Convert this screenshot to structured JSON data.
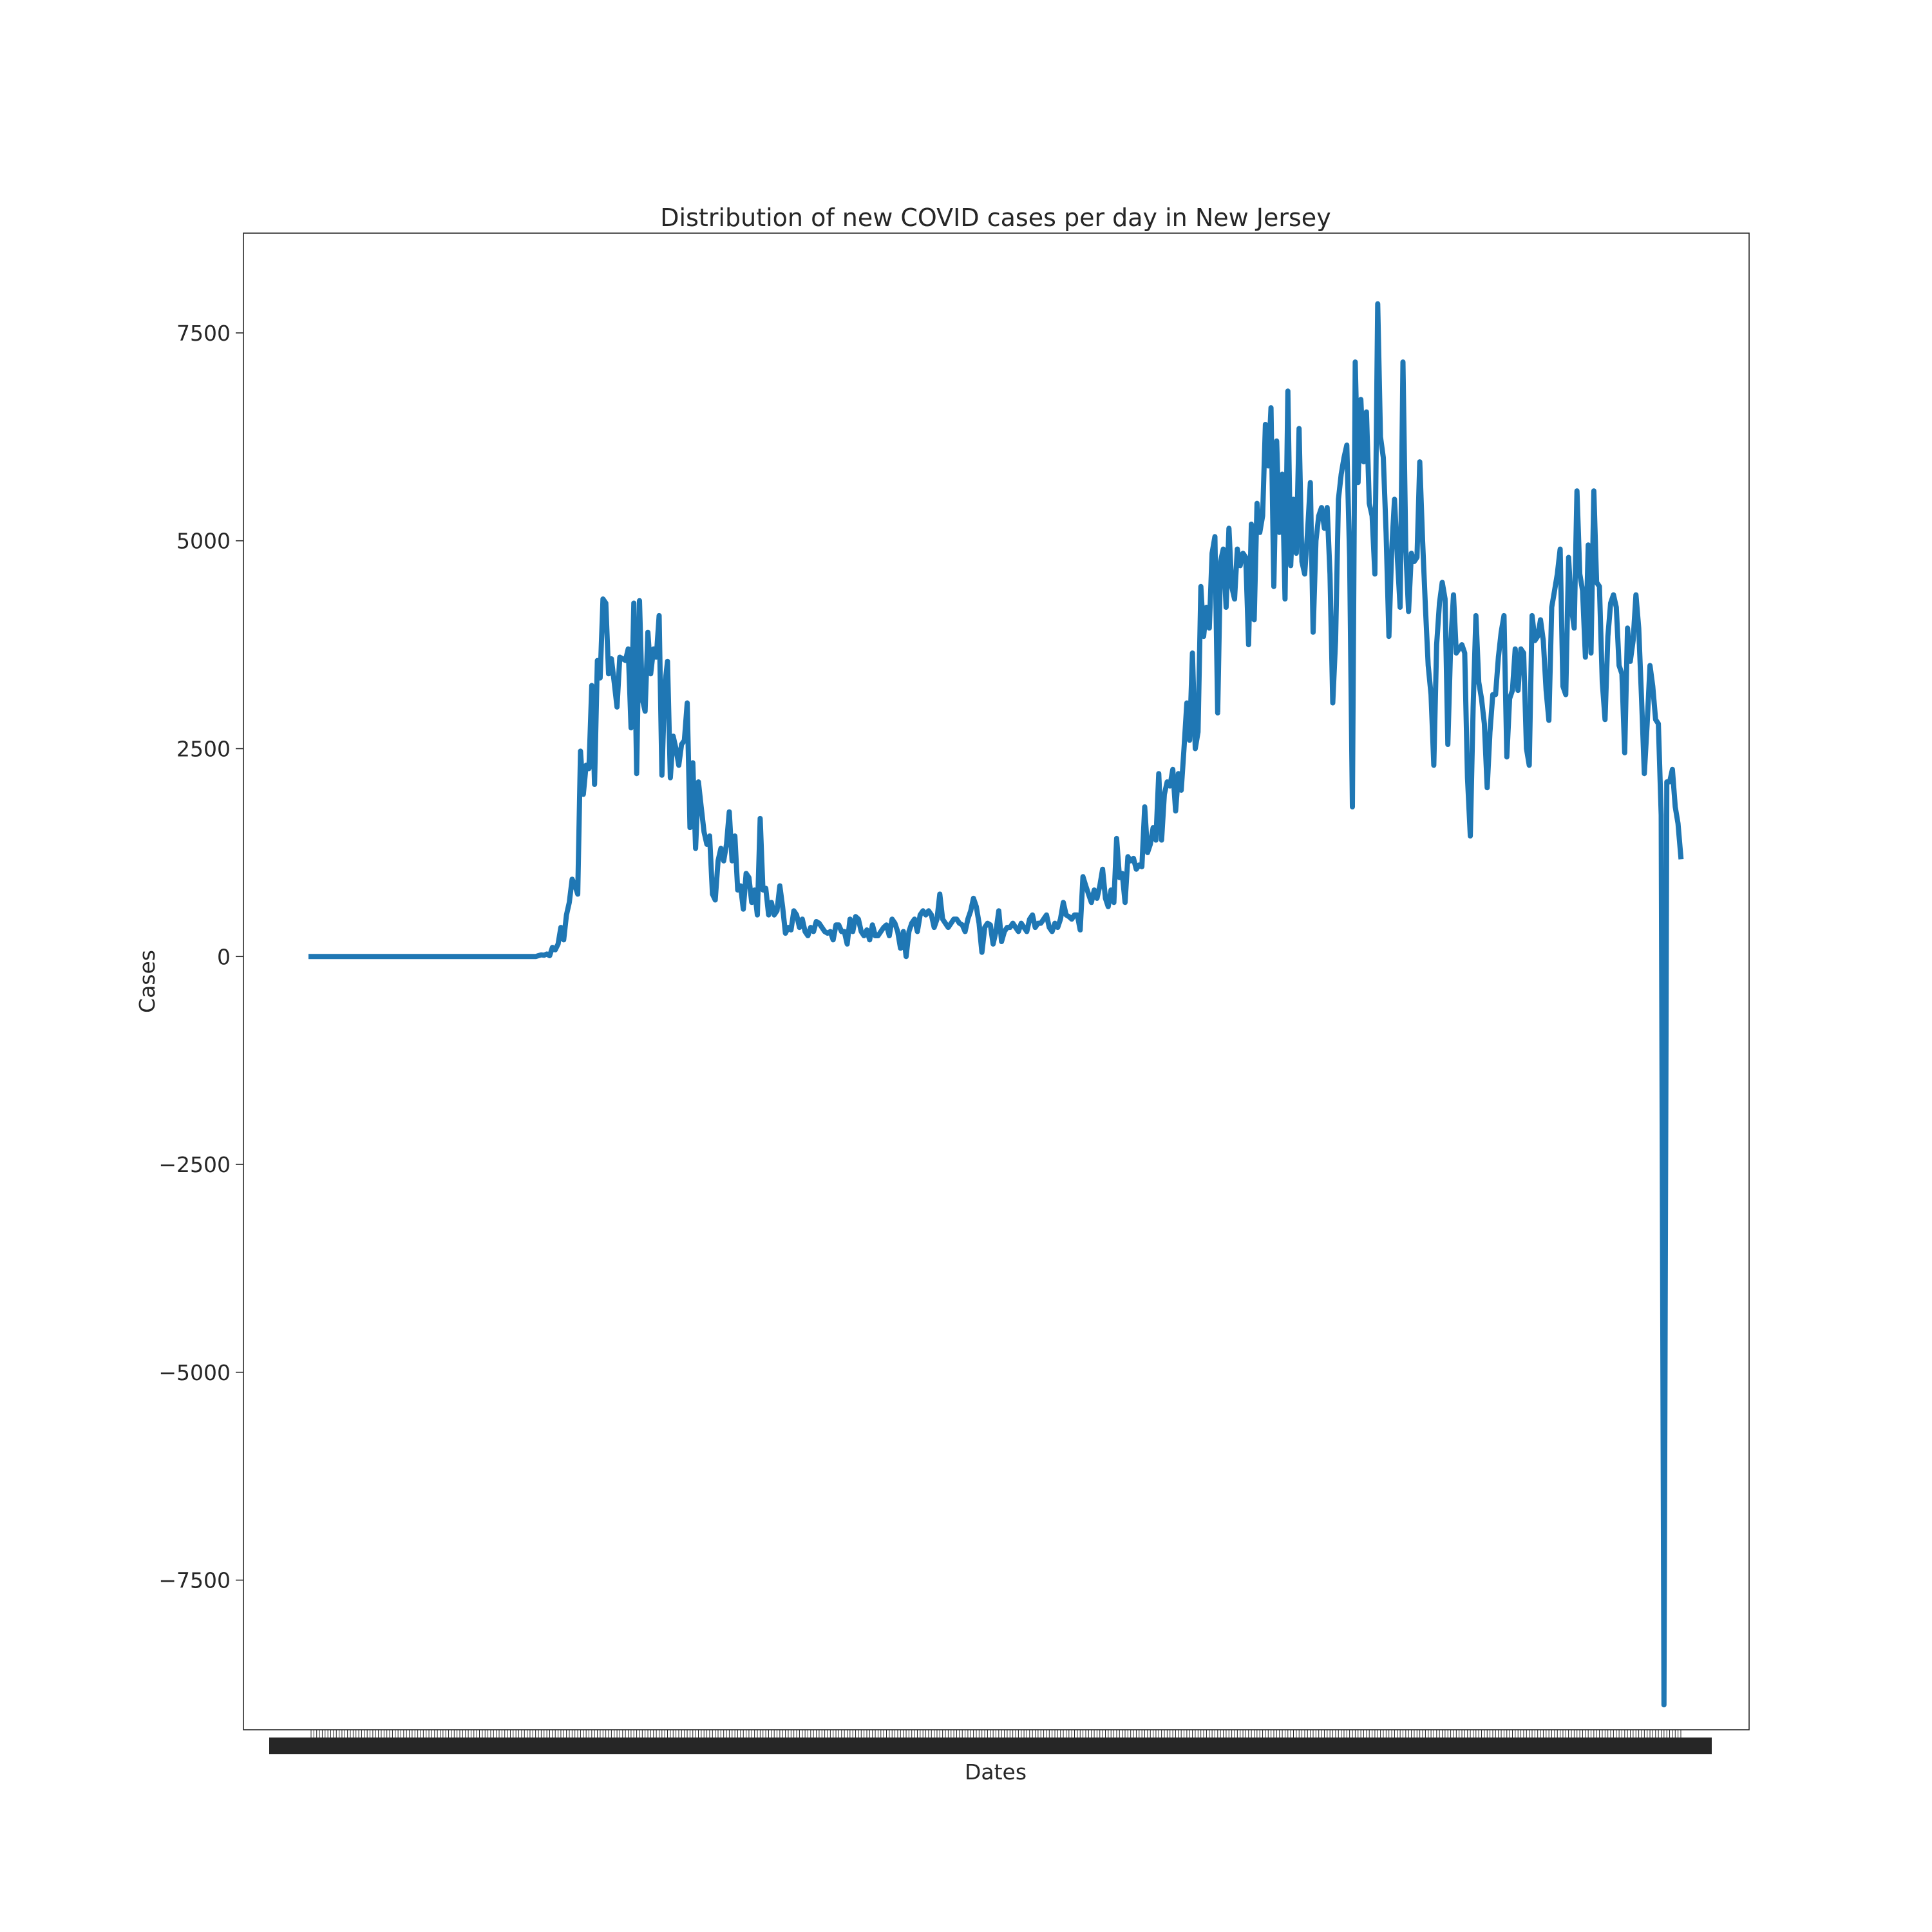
{
  "chart_data": {
    "type": "line",
    "title": "Distribution of new COVID cases per day in New Jersey",
    "xlabel": "Dates",
    "ylabel": "Cases",
    "ylim": [
      -9300,
      8700
    ],
    "yticks": [
      -7500,
      -5000,
      -2500,
      0,
      2500,
      5000,
      7500
    ],
    "ytick_labels": [
      "−7500",
      "−5000",
      "−2500",
      "0",
      "2500",
      "5000",
      "7500"
    ],
    "x_tick_labels_legible": false,
    "grid": false,
    "colors": {
      "line": "#1f77b4",
      "axes": "#262626",
      "background": "#ffffff"
    },
    "series": [
      {
        "values": [
          0,
          0,
          0,
          0,
          0,
          0,
          0,
          0,
          0,
          0,
          0,
          0,
          0,
          0,
          0,
          0,
          0,
          0,
          0,
          0,
          0,
          0,
          0,
          0,
          0,
          0,
          0,
          0,
          0,
          0,
          0,
          0,
          0,
          0,
          0,
          0,
          0,
          0,
          0,
          0,
          0,
          0,
          0,
          0,
          0,
          0,
          0,
          0,
          0,
          0,
          0,
          0,
          0,
          0,
          0,
          0,
          0,
          0,
          0,
          0,
          0,
          0,
          0,
          0,
          0,
          0,
          0,
          0,
          0,
          0,
          0,
          0,
          0,
          0,
          0,
          0,
          0,
          0,
          0,
          0,
          0,
          10,
          20,
          15,
          30,
          10,
          110,
          80,
          150,
          350,
          200,
          500,
          650,
          930,
          860,
          750,
          2470,
          1950,
          2300,
          2260,
          3260,
          2070,
          3560,
          3350,
          4300,
          4250,
          3400,
          3580,
          3300,
          3000,
          3600,
          3580,
          3560,
          3700,
          2750,
          4250,
          2200,
          4280,
          3100,
          2950,
          3900,
          3400,
          3700,
          3600,
          4100,
          2180,
          3250,
          3550,
          2150,
          2650,
          2500,
          2300,
          2550,
          2600,
          3050,
          1550,
          2330,
          1300,
          2100,
          1800,
          1500,
          1350,
          1450,
          750,
          680,
          1150,
          1300,
          1150,
          1350,
          1740,
          1150,
          1450,
          800,
          850,
          570,
          1000,
          950,
          650,
          800,
          500,
          1660,
          800,
          820,
          500,
          650,
          500,
          550,
          850,
          600,
          280,
          350,
          320,
          550,
          500,
          350,
          450,
          300,
          250,
          350,
          300,
          420,
          400,
          350,
          300,
          280,
          300,
          200,
          380,
          380,
          300,
          300,
          150,
          450,
          300,
          480,
          450,
          300,
          250,
          320,
          200,
          380,
          250,
          250,
          300,
          350,
          380,
          250,
          450,
          400,
          300,
          100,
          300,
          0,
          300,
          400,
          450,
          300,
          500,
          550,
          500,
          550,
          500,
          350,
          450,
          750,
          450,
          400,
          350,
          400,
          450,
          450,
          400,
          380,
          300,
          450,
          550,
          700,
          600,
          400,
          50,
          350,
          400,
          380,
          150,
          300,
          550,
          180,
          300,
          350,
          350,
          400,
          350,
          300,
          400,
          350,
          300,
          450,
          500,
          350,
          400,
          400,
          450,
          500,
          350,
          300,
          400,
          350,
          450,
          650,
          500,
          480,
          450,
          500,
          500,
          320,
          960,
          850,
          750,
          650,
          800,
          700,
          850,
          1050,
          700,
          600,
          800,
          650,
          1420,
          950,
          1000,
          650,
          1200,
          1150,
          1180,
          1050,
          1100,
          1080,
          1800,
          1250,
          1350,
          1550,
          1400,
          2200,
          1400,
          1950,
          2100,
          2050,
          2250,
          1750,
          2200,
          2000,
          2500,
          3050,
          2600,
          3650,
          2500,
          2700,
          4450,
          3850,
          4200,
          3950,
          4850,
          5050,
          2930,
          4750,
          4900,
          4200,
          5150,
          4450,
          4300,
          4900,
          4700,
          4850,
          4800,
          3750,
          5200,
          4050,
          5450,
          5100,
          5300,
          6400,
          5900,
          6600,
          4450,
          6200,
          5100,
          5800,
          4300,
          6800,
          4700,
          5500,
          4850,
          6350,
          4750,
          4600,
          5100,
          5700,
          3900,
          5000,
          5300,
          5400,
          5150,
          5400,
          4600,
          3050,
          3800,
          5500,
          5800,
          6000,
          6150,
          4800,
          1800,
          7150,
          5700,
          6700,
          5950,
          6550,
          5450,
          5300,
          4600,
          7850,
          6250,
          6000,
          5100,
          3850,
          4900,
          5500,
          4800,
          4200,
          7150,
          4900,
          4150,
          4850,
          4750,
          4800,
          5950,
          5000,
          4200,
          3500,
          3150,
          2300,
          3750,
          4250,
          4500,
          4300,
          2550,
          3750,
          4350,
          3650,
          3700,
          3750,
          3650,
          2150,
          1450,
          3000,
          4100,
          3300,
          3100,
          2800,
          2030,
          2700,
          3150,
          3150,
          3600,
          3900,
          4100,
          2400,
          3100,
          3200,
          3700,
          3200,
          3700,
          3650,
          2500,
          2300,
          4100,
          3800,
          3850,
          4050,
          3800,
          3200,
          2840,
          4200,
          4400,
          4600,
          4900,
          3250,
          3150,
          4800,
          4200,
          3950,
          5600,
          4600,
          4400,
          3600,
          4950,
          3650,
          5600,
          4500,
          4450,
          3300,
          2850,
          3850,
          4250,
          4350,
          4200,
          3500,
          3400,
          2450,
          3950,
          3550,
          3800,
          4350,
          3950,
          3100,
          2200,
          2800,
          3500,
          3250,
          2850,
          2800,
          1700,
          -9000,
          2100,
          2100,
          2250,
          1800,
          1600,
          1200
        ]
      }
    ]
  }
}
